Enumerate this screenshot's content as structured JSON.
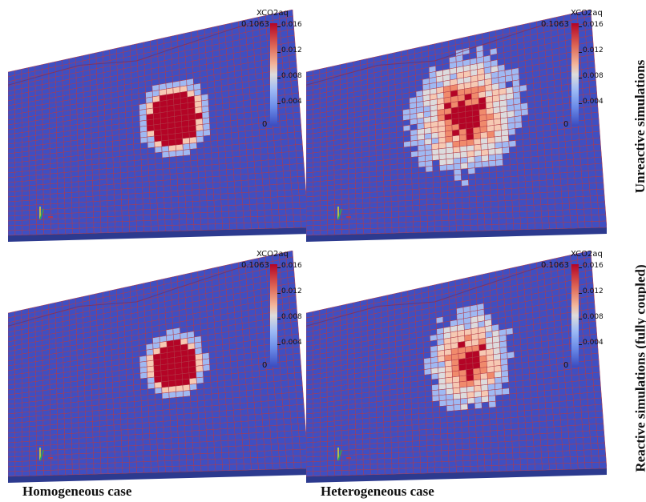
{
  "colorbar": {
    "title": "XCO2aq",
    "max_label": "0.1063",
    "min_label": "0",
    "ticks": [
      "0.016",
      "0.012",
      "0.008",
      "0.004"
    ]
  },
  "panels": [
    {
      "id": "homogeneous-unreactive",
      "plume": "compact"
    },
    {
      "id": "heterogeneous-unreactive",
      "plume": "dispersed"
    },
    {
      "id": "homogeneous-reactive",
      "plume": "compact-small"
    },
    {
      "id": "heterogeneous-reactive",
      "plume": "dispersed-small"
    }
  ],
  "captions": {
    "left": "Homogeneous case",
    "right": "Heterogeneous case"
  },
  "row_labels": {
    "top": "Unreactive simulations",
    "bottom": "Reactive simulations (fully coupled)"
  },
  "colors": {
    "grid_fill": "#3f4fc2",
    "grid_line": "#b23a48",
    "plume_high": "#b40426",
    "plume_mid": "#f08a6c",
    "plume_light": "#f6c9b3",
    "plume_neutral": "#dcdcde",
    "plume_low": "#9fb9f3"
  }
}
